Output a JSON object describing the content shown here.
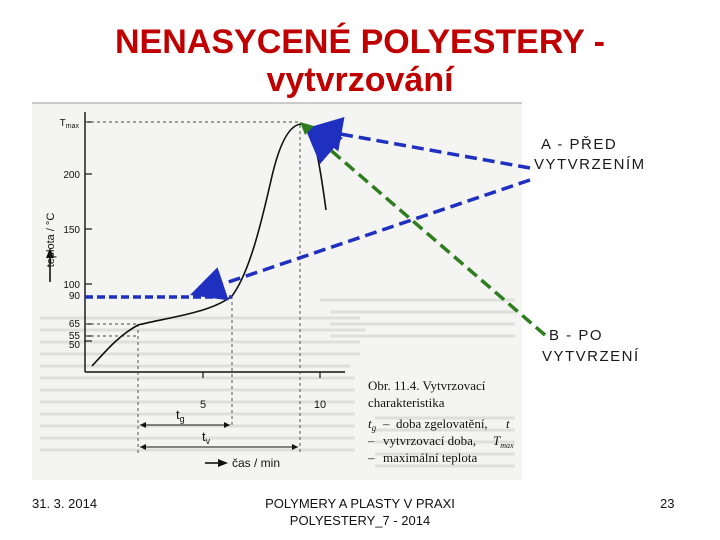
{
  "slide": {
    "title_line1": "NENASYCENÉ POLYESTERY -",
    "title_line2": "vytvrzování"
  },
  "figure": {
    "y_axis_label": "teplota / °C",
    "x_axis_label": "čas / min",
    "y_ticks": [
      "T",
      "200",
      "150",
      "100",
      "90",
      "65",
      "55",
      "50"
    ],
    "tmax_sub": "max",
    "x_ticks": [
      "5",
      "10"
    ],
    "tg_label": "t",
    "tg_sub": "g",
    "tv_label": "t",
    "tv_sub": "v",
    "caption_title": "Obr. 11.4. Vytvrzovací",
    "caption_title2": "charakteristika",
    "legend_1": "doba zgelovatění,",
    "legend_2": "vytvrzovací doba,",
    "legend_3": "maximální teplota",
    "legend_sym_1": "t",
    "legend_sym_1_sub": "g",
    "legend_sym_2_suffix": "t",
    "legend_sym_3": "T",
    "legend_sym_3_sub": "max",
    "dash_symbol": "–"
  },
  "annotations": {
    "a_line1": "A - PŘED",
    "a_line2": "VYTVRZENÍM",
    "b_line1": "B - PO",
    "b_line2": "VYTVRZENÍ",
    "colors": {
      "arrow_blue": "#1f2fbf",
      "arrow_green": "#2e7d1e",
      "title_red": "#c00000"
    }
  },
  "footer": {
    "date": "31. 3. 2014",
    "center_line1": "POLYMERY A PLASTY V PRAXI",
    "center_line2": "POLYESTERY_7 - 2014",
    "page_number": "23"
  }
}
